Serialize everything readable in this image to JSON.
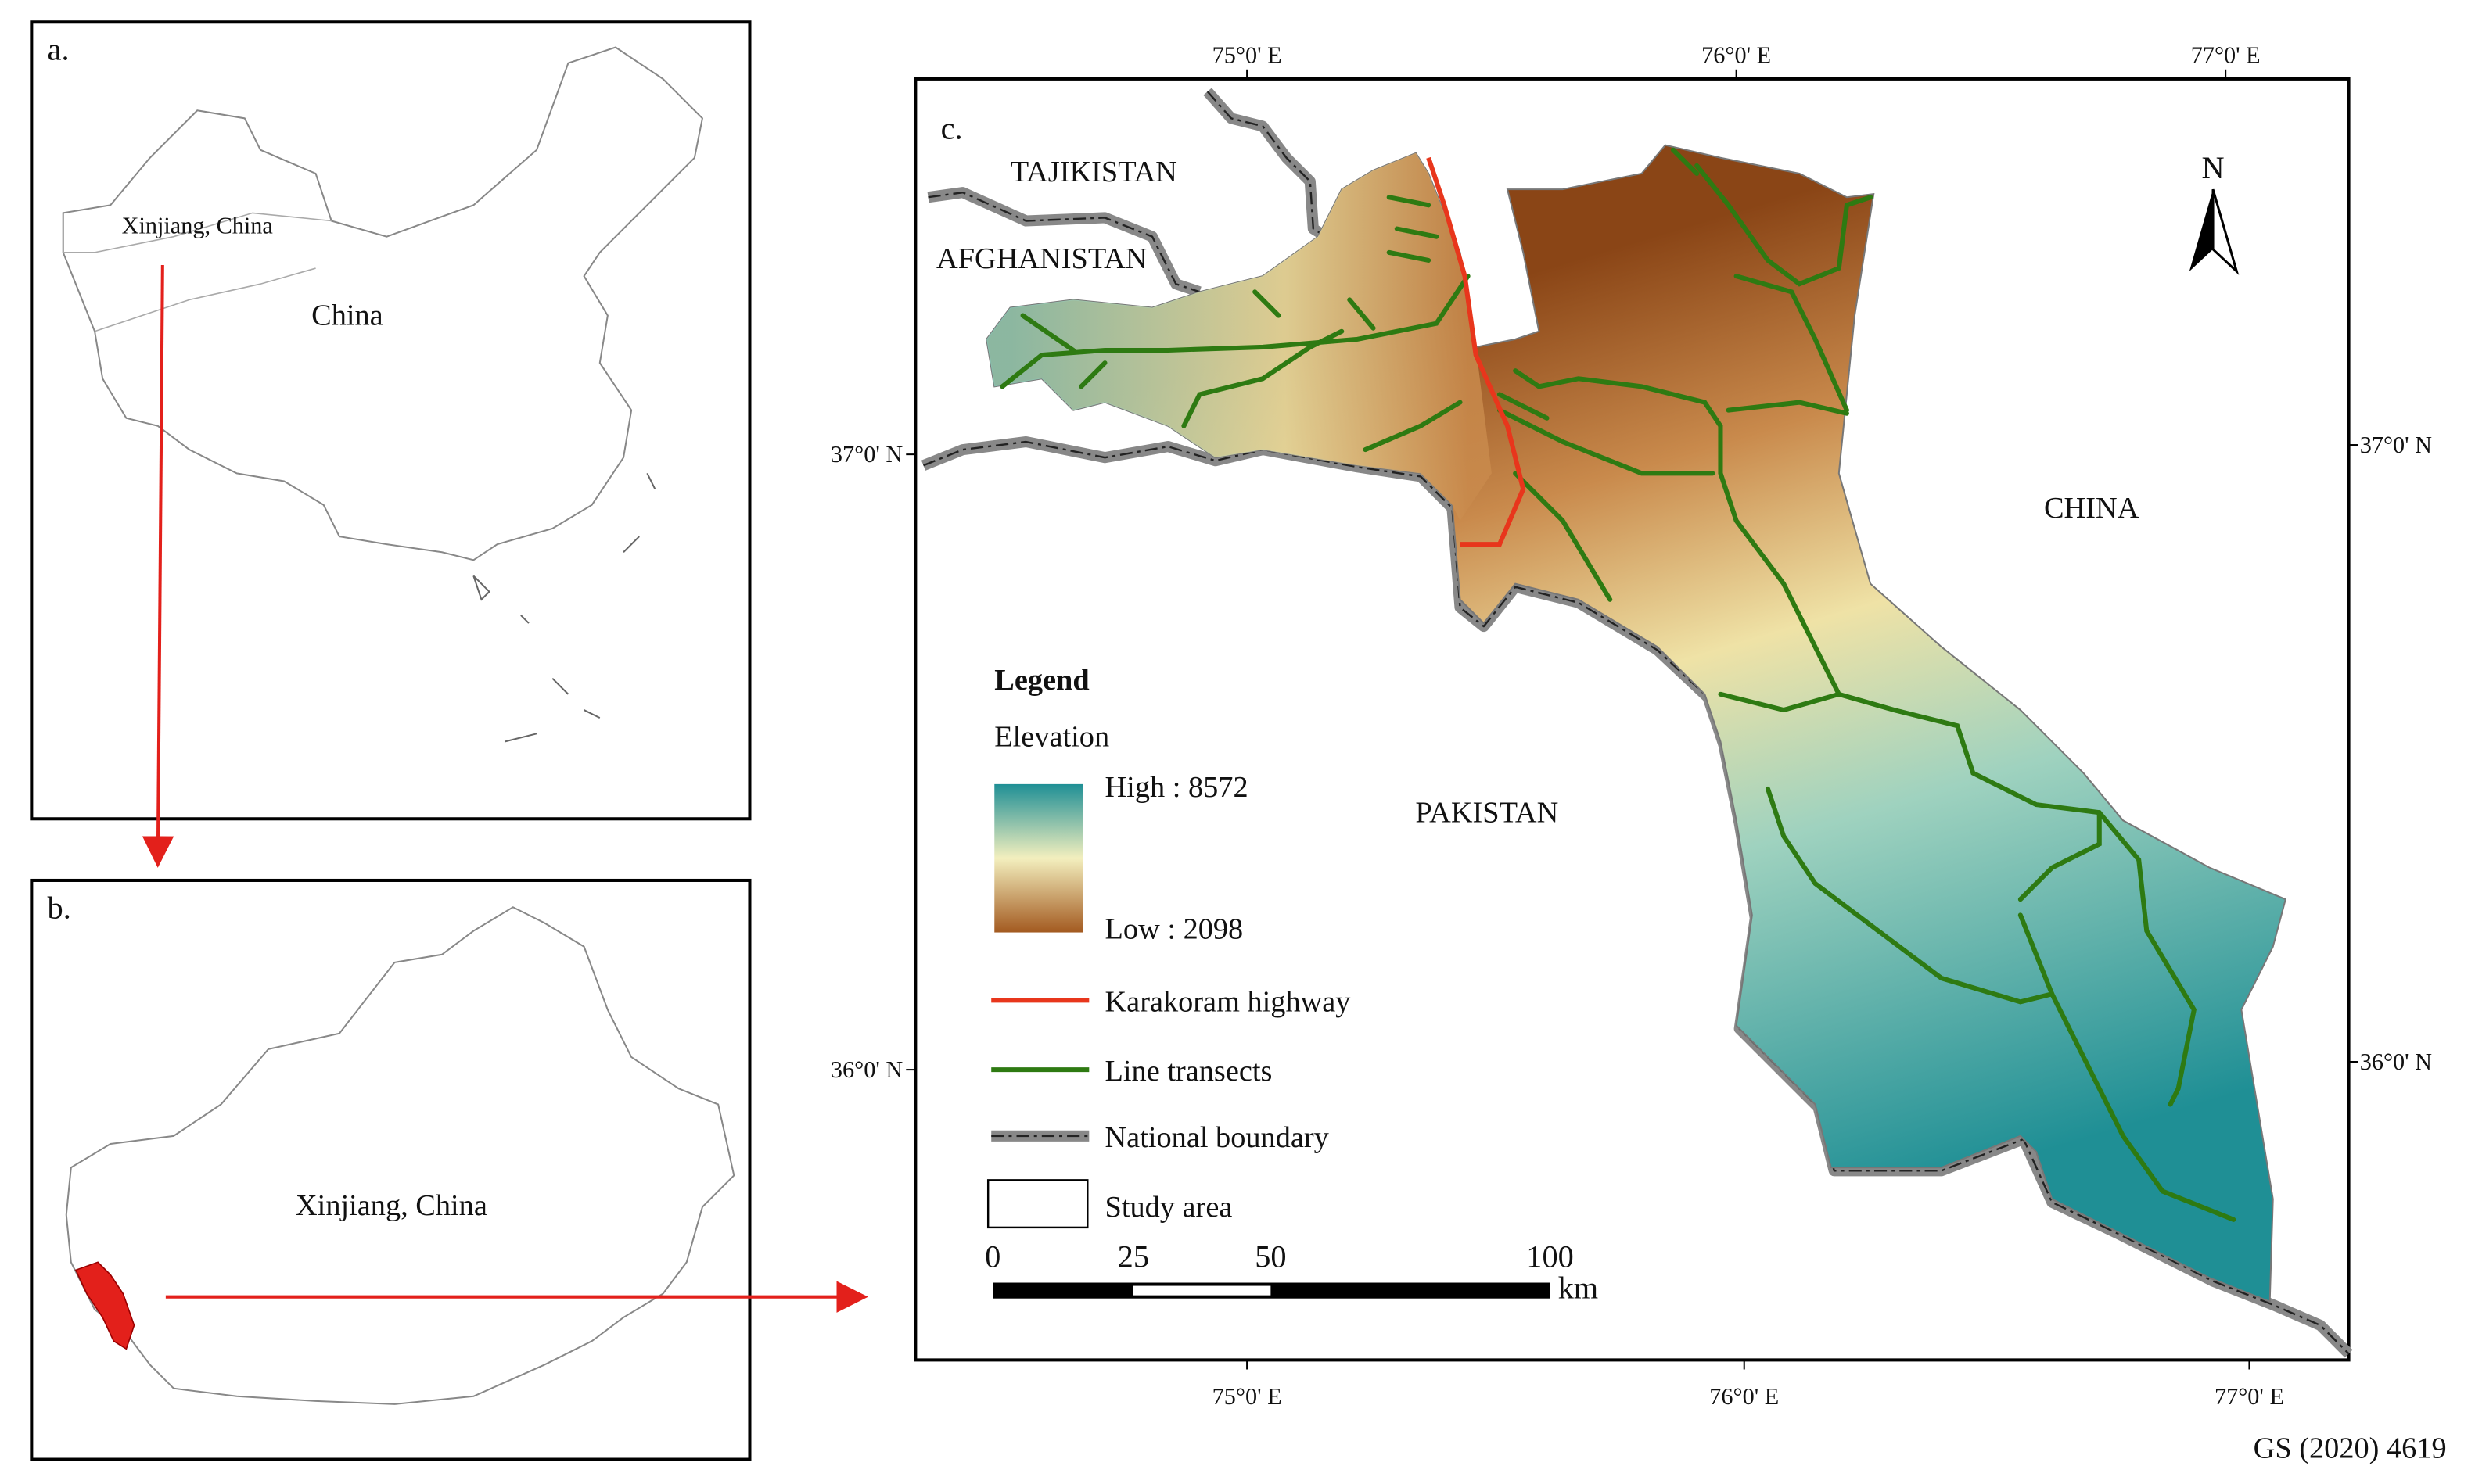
{
  "panel_a": {
    "label": "a.",
    "xinjiang_label": "Xinjiang, China",
    "country_label": "China"
  },
  "panel_b": {
    "label": "b.",
    "region_label": "Xinjiang, China"
  },
  "panel_c": {
    "label": "c.",
    "longitude_labels": [
      "75°0' E",
      "76°0' E",
      "77°0' E"
    ],
    "latitude_labels": [
      "37°0' N",
      "36°0' N"
    ],
    "countries": [
      "TAJIKISTAN",
      "AFGHANISTAN",
      "CHINA",
      "PAKISTAN"
    ],
    "north": "N",
    "legend": {
      "title": "Legend",
      "elevation_title": "Elevation",
      "high": "High : 8572",
      "low": "Low : 2098",
      "items": [
        "Karakoram highway",
        "Line transects",
        "National boundary",
        "Study area"
      ]
    },
    "scale_bar": {
      "ticks": [
        0,
        25,
        50,
        100
      ],
      "unit": "km"
    }
  },
  "credit": "GS (2020) 4619"
}
